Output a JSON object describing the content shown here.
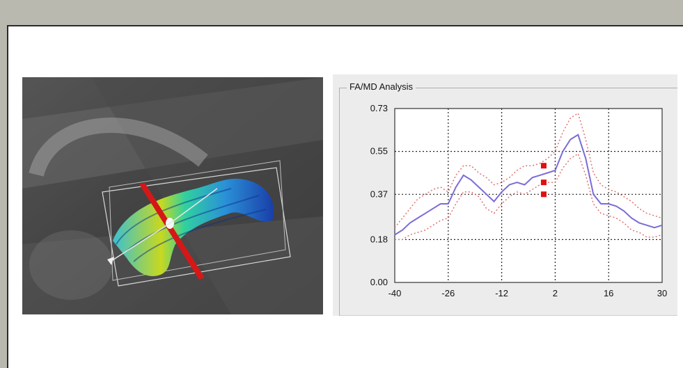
{
  "panel": {
    "title": "FA/MD Analysis"
  },
  "chart_data": {
    "type": "line",
    "x_ticks": [
      -40,
      -26,
      -12,
      2,
      16,
      30
    ],
    "y_ticks": [
      "0.00",
      "0.18",
      "0.37",
      "0.55",
      "0.73"
    ],
    "xlim": [
      -40,
      30
    ],
    "ylim": [
      0,
      0.73
    ],
    "grid": true,
    "series": [
      {
        "role": "mean",
        "color": "#7a6cd6",
        "x": [
          -40,
          -38,
          -36,
          -34,
          -32,
          -30,
          -28,
          -26,
          -24,
          -22,
          -20,
          -18,
          -16,
          -14,
          -12,
          -10,
          -8,
          -6,
          -4,
          -2,
          0,
          2,
          4,
          6,
          8,
          10,
          12,
          14,
          16,
          18,
          20,
          22,
          24,
          26,
          28,
          30
        ],
        "y": [
          0.2,
          0.22,
          0.25,
          0.27,
          0.29,
          0.31,
          0.33,
          0.33,
          0.4,
          0.45,
          0.43,
          0.4,
          0.37,
          0.34,
          0.38,
          0.41,
          0.42,
          0.41,
          0.44,
          0.45,
          0.46,
          0.47,
          0.55,
          0.6,
          0.62,
          0.52,
          0.37,
          0.33,
          0.33,
          0.32,
          0.3,
          0.27,
          0.25,
          0.24,
          0.23,
          0.24
        ]
      },
      {
        "role": "upper",
        "color": "#e07070",
        "x": [
          -40,
          -38,
          -36,
          -34,
          -32,
          -30,
          -28,
          -26,
          -24,
          -22,
          -20,
          -18,
          -16,
          -14,
          -12,
          -10,
          -8,
          -6,
          -4,
          -2,
          0,
          2,
          4,
          6,
          8,
          10,
          12,
          14,
          16,
          18,
          20,
          22,
          24,
          26,
          28,
          30
        ],
        "y": [
          0.23,
          0.27,
          0.31,
          0.35,
          0.37,
          0.39,
          0.4,
          0.38,
          0.45,
          0.49,
          0.49,
          0.46,
          0.44,
          0.41,
          0.42,
          0.44,
          0.47,
          0.49,
          0.49,
          0.5,
          0.52,
          0.55,
          0.63,
          0.69,
          0.71,
          0.6,
          0.46,
          0.41,
          0.39,
          0.38,
          0.36,
          0.34,
          0.31,
          0.29,
          0.28,
          0.27
        ]
      },
      {
        "role": "lower",
        "color": "#e07070",
        "x": [
          -40,
          -38,
          -36,
          -34,
          -32,
          -30,
          -28,
          -26,
          -24,
          -22,
          -20,
          -18,
          -16,
          -14,
          -12,
          -10,
          -8,
          -6,
          -4,
          -2,
          0,
          2,
          4,
          6,
          8,
          10,
          12,
          14,
          16,
          18,
          20,
          22,
          24,
          26,
          28,
          30
        ],
        "y": [
          0.18,
          0.18,
          0.2,
          0.21,
          0.22,
          0.24,
          0.26,
          0.27,
          0.33,
          0.38,
          0.38,
          0.36,
          0.31,
          0.29,
          0.33,
          0.36,
          0.38,
          0.37,
          0.39,
          0.41,
          0.42,
          0.42,
          0.48,
          0.52,
          0.54,
          0.45,
          0.33,
          0.29,
          0.28,
          0.27,
          0.25,
          0.22,
          0.21,
          0.19,
          0.19,
          0.2
        ]
      }
    ],
    "markers": [
      {
        "x": -1,
        "y": 0.49,
        "color": "#e01010"
      },
      {
        "x": -1,
        "y": 0.42,
        "color": "#e01010"
      },
      {
        "x": -1,
        "y": 0.37,
        "color": "#e01010"
      }
    ]
  }
}
